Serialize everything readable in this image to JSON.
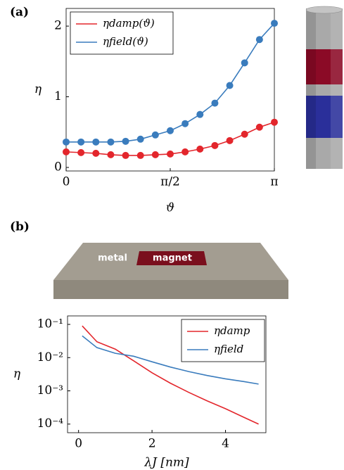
{
  "chart_data": [
    {
      "type": "line",
      "panel_label": "(a)",
      "xlabel": "ϑ",
      "ylabel": "η",
      "x": [
        0,
        0.2244,
        0.4488,
        0.6732,
        0.8976,
        1.122,
        1.3464,
        1.5708,
        1.7952,
        2.0196,
        2.244,
        2.4684,
        2.6928,
        2.9172,
        3.1416
      ],
      "series": [
        {
          "name": "ηdamp(ϑ)",
          "color": "#e3262c",
          "values": [
            0.22,
            0.21,
            0.2,
            0.18,
            0.17,
            0.17,
            0.18,
            0.19,
            0.22,
            0.26,
            0.31,
            0.38,
            0.47,
            0.57,
            0.64
          ]
        },
        {
          "name": "ηfield(ϑ)",
          "color": "#3a7cbd",
          "values": [
            0.36,
            0.36,
            0.36,
            0.36,
            0.37,
            0.4,
            0.46,
            0.52,
            0.62,
            0.75,
            0.91,
            1.16,
            1.48,
            1.81,
            2.04
          ]
        }
      ],
      "markers": true,
      "xlim": [
        0,
        3.1416
      ],
      "xticks": [
        0,
        {
          "value": 1.5708,
          "label": "π/2"
        },
        {
          "value": 3.1416,
          "label": "π"
        }
      ],
      "ylim": [
        -0.05,
        2.25
      ],
      "yticks": [
        0,
        1,
        2
      ],
      "legend": "upper left"
    },
    {
      "type": "line",
      "panel_label": "(b)",
      "xlabel": "λJ [nm]",
      "ylabel": "η",
      "x": [
        0.1,
        0.5,
        1,
        1.5,
        2,
        2.5,
        3,
        3.5,
        4,
        4.5,
        4.9
      ],
      "series": [
        {
          "name": "ηdamp",
          "color": "#e3262c",
          "values": [
            0.09,
            0.03,
            0.018,
            0.008,
            0.0035,
            0.0017,
            0.0009,
            0.0005,
            0.00029,
            0.00016,
            0.0001
          ]
        },
        {
          "name": "ηfield",
          "color": "#3a7cbd",
          "values": [
            0.045,
            0.02,
            0.0135,
            0.011,
            0.0075,
            0.0052,
            0.0038,
            0.0029,
            0.0023,
            0.0019,
            0.0016
          ]
        }
      ],
      "markers": false,
      "ylog": true,
      "xlim": [
        -0.3,
        5.1
      ],
      "xticks": [
        0,
        2,
        4
      ],
      "ylim": [
        5.5e-05,
        0.18
      ],
      "yticks": [
        {
          "value": 0.1,
          "label": "10⁻¹"
        },
        {
          "value": 0.01,
          "label": "10⁻²"
        },
        {
          "value": 0.001,
          "label": "10⁻³"
        },
        {
          "value": 0.0001,
          "label": "10⁻⁴"
        }
      ],
      "legend": "upper right"
    }
  ],
  "illustration": {
    "metal": "metal",
    "magnet": "magnet"
  }
}
